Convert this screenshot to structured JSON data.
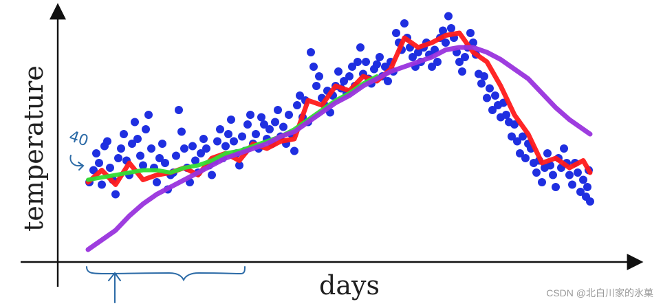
{
  "chart_data": {
    "type": "scatter",
    "title": "",
    "xlabel": "days",
    "ylabel": "temperature",
    "grid": false,
    "legend": "none",
    "x_range": [
      0,
      365
    ],
    "y_range": [
      0,
      100
    ],
    "annotations": {
      "handwritten_value": "40",
      "brace_under_first_days": true
    },
    "points": {
      "color": "#1f2fe0",
      "data": [
        [
          1,
          30
        ],
        [
          4,
          35
        ],
        [
          6,
          42
        ],
        [
          8,
          38
        ],
        [
          10,
          29
        ],
        [
          12,
          45
        ],
        [
          14,
          47
        ],
        [
          16,
          36
        ],
        [
          18,
          31
        ],
        [
          20,
          25
        ],
        [
          22,
          40
        ],
        [
          24,
          44
        ],
        [
          26,
          50
        ],
        [
          28,
          39
        ],
        [
          30,
          33
        ],
        [
          32,
          46
        ],
        [
          34,
          55
        ],
        [
          36,
          48
        ],
        [
          38,
          41
        ],
        [
          40,
          37
        ],
        [
          42,
          52
        ],
        [
          44,
          58
        ],
        [
          46,
          44
        ],
        [
          48,
          36
        ],
        [
          50,
          30
        ],
        [
          52,
          40
        ],
        [
          54,
          46
        ],
        [
          56,
          38
        ],
        [
          58,
          27
        ],
        [
          60,
          33
        ],
        [
          62,
          34
        ],
        [
          64,
          41
        ],
        [
          66,
          60
        ],
        [
          68,
          51
        ],
        [
          70,
          44
        ],
        [
          72,
          36
        ],
        [
          74,
          30
        ],
        [
          76,
          45
        ],
        [
          78,
          39
        ],
        [
          80,
          34
        ],
        [
          82,
          42
        ],
        [
          84,
          48
        ],
        [
          86,
          44
        ],
        [
          88,
          37
        ],
        [
          90,
          33
        ],
        [
          92,
          39
        ],
        [
          94,
          47
        ],
        [
          96,
          52
        ],
        [
          98,
          40
        ],
        [
          100,
          45
        ],
        [
          102,
          50
        ],
        [
          104,
          56
        ],
        [
          106,
          47
        ],
        [
          108,
          42
        ],
        [
          110,
          37
        ],
        [
          112,
          49
        ],
        [
          114,
          43
        ],
        [
          116,
          54
        ],
        [
          118,
          58
        ],
        [
          120,
          46
        ],
        [
          122,
          50
        ],
        [
          124,
          44
        ],
        [
          126,
          57
        ],
        [
          128,
          54
        ],
        [
          130,
          48
        ],
        [
          132,
          52
        ],
        [
          134,
          46
        ],
        [
          136,
          55
        ],
        [
          138,
          60
        ],
        [
          140,
          49
        ],
        [
          142,
          53
        ],
        [
          144,
          46
        ],
        [
          146,
          58
        ],
        [
          148,
          50
        ],
        [
          150,
          43
        ],
        [
          152,
          62
        ],
        [
          154,
          66
        ],
        [
          156,
          57
        ],
        [
          158,
          64
        ],
        [
          160,
          55
        ],
        [
          162,
          84
        ],
        [
          164,
          78
        ],
        [
          166,
          70
        ],
        [
          168,
          74
        ],
        [
          170,
          65
        ],
        [
          172,
          62
        ],
        [
          174,
          68
        ],
        [
          176,
          59
        ],
        [
          178,
          66
        ],
        [
          180,
          70
        ],
        [
          182,
          76
        ],
        [
          184,
          69
        ],
        [
          186,
          72
        ],
        [
          188,
          67
        ],
        [
          190,
          74
        ],
        [
          192,
          78
        ],
        [
          194,
          70
        ],
        [
          196,
          80
        ],
        [
          198,
          86
        ],
        [
          200,
          75
        ],
        [
          202,
          80
        ],
        [
          204,
          73
        ],
        [
          206,
          71
        ],
        [
          208,
          77
        ],
        [
          210,
          79
        ],
        [
          212,
          82
        ],
        [
          214,
          74
        ],
        [
          216,
          78
        ],
        [
          218,
          72
        ],
        [
          220,
          80
        ],
        [
          222,
          76
        ],
        [
          224,
          92
        ],
        [
          226,
          88
        ],
        [
          228,
          85
        ],
        [
          230,
          96
        ],
        [
          232,
          90
        ],
        [
          234,
          86
        ],
        [
          236,
          82
        ],
        [
          238,
          78
        ],
        [
          240,
          84
        ],
        [
          242,
          80
        ],
        [
          244,
          86
        ],
        [
          246,
          88
        ],
        [
          248,
          83
        ],
        [
          250,
          78
        ],
        [
          252,
          85
        ],
        [
          254,
          80
        ],
        [
          256,
          90
        ],
        [
          258,
          93
        ],
        [
          260,
          88
        ],
        [
          262,
          99
        ],
        [
          264,
          94
        ],
        [
          266,
          90
        ],
        [
          268,
          84
        ],
        [
          270,
          80
        ],
        [
          272,
          76
        ],
        [
          274,
          82
        ],
        [
          276,
          86
        ],
        [
          278,
          92
        ],
        [
          280,
          88
        ],
        [
          282,
          83
        ],
        [
          284,
          75
        ],
        [
          286,
          71
        ],
        [
          288,
          74
        ],
        [
          290,
          65
        ],
        [
          292,
          69
        ],
        [
          294,
          60
        ],
        [
          296,
          66
        ],
        [
          298,
          62
        ],
        [
          300,
          57
        ],
        [
          302,
          63
        ],
        [
          304,
          58
        ],
        [
          306,
          55
        ],
        [
          308,
          49
        ],
        [
          310,
          54
        ],
        [
          312,
          47
        ],
        [
          314,
          42
        ],
        [
          316,
          49
        ],
        [
          318,
          40
        ],
        [
          320,
          46
        ],
        [
          322,
          44
        ],
        [
          324,
          38
        ],
        [
          326,
          34
        ],
        [
          328,
          39
        ],
        [
          330,
          30
        ],
        [
          332,
          36
        ],
        [
          334,
          42
        ],
        [
          336,
          37
        ],
        [
          338,
          33
        ],
        [
          340,
          28
        ],
        [
          342,
          40
        ],
        [
          344,
          36
        ],
        [
          346,
          44
        ],
        [
          348,
          38
        ],
        [
          350,
          33
        ],
        [
          352,
          29
        ],
        [
          354,
          38
        ],
        [
          356,
          34
        ],
        [
          358,
          26
        ],
        [
          360,
          31
        ],
        [
          362,
          24
        ],
        [
          363,
          28
        ],
        [
          364,
          35
        ],
        [
          365,
          22
        ]
      ]
    },
    "series": [
      {
        "color": "#ff1a1a",
        "x": [
          0,
          10,
          20,
          30,
          40,
          50,
          60,
          70,
          80,
          90,
          100,
          110,
          120,
          130,
          140,
          150,
          160,
          170,
          180,
          190,
          200,
          210,
          220,
          230,
          240,
          250,
          260,
          270,
          280,
          290,
          300,
          310,
          320,
          330,
          340,
          350,
          360,
          365
        ],
        "values": [
          30,
          35,
          29,
          38,
          31,
          33,
          34,
          36,
          33,
          40,
          42,
          39,
          46,
          44,
          47,
          48,
          64,
          62,
          70,
          68,
          74,
          72,
          77,
          90,
          86,
          88,
          91,
          92,
          84,
          80,
          70,
          58,
          50,
          38,
          40,
          36,
          39,
          34
        ]
      },
      {
        "color": "#33dd33",
        "x": [
          0,
          10,
          20,
          30,
          40,
          50,
          60,
          70,
          80,
          90,
          100,
          110,
          120,
          130,
          140,
          150,
          160,
          170,
          180,
          190,
          200,
          210
        ],
        "values": [
          31,
          32,
          33,
          34,
          35,
          35,
          34,
          36,
          37,
          39,
          42,
          43,
          45,
          47,
          49,
          52,
          56,
          60,
          64,
          67,
          71,
          74
        ]
      },
      {
        "color": "#9933dd",
        "x": [
          0,
          10,
          20,
          30,
          40,
          50,
          60,
          70,
          80,
          90,
          100,
          110,
          120,
          130,
          140,
          150,
          160,
          170,
          180,
          190,
          200,
          210,
          220,
          230,
          240,
          250,
          260,
          270,
          280,
          290,
          300,
          310,
          320,
          330,
          340,
          350,
          360,
          365
        ],
        "values": [
          2,
          6,
          10,
          16,
          21,
          25,
          28,
          31,
          34,
          37,
          40,
          42,
          44,
          46,
          49,
          51,
          55,
          59,
          63,
          66,
          70,
          73,
          76,
          78,
          80,
          82,
          85,
          86,
          86,
          84,
          81,
          77,
          73,
          67,
          61,
          56,
          52,
          50
        ]
      }
    ]
  },
  "watermark": "CSDN @北白川家的氷菓"
}
